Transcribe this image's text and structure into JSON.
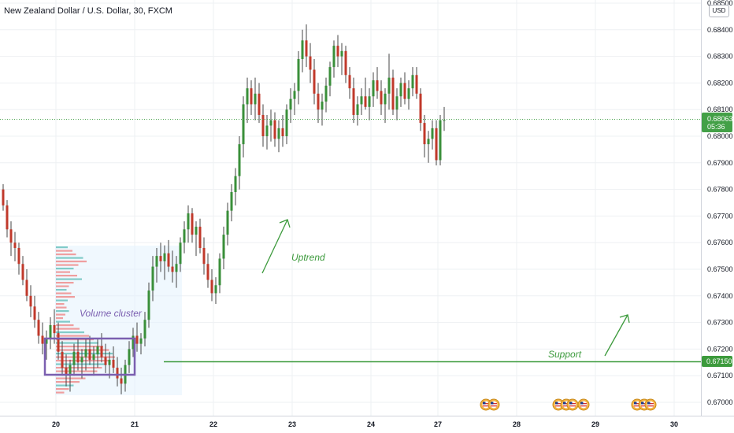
{
  "header": {
    "title": "New Zealand Dollar / U.S. Dollar, 30, FXCM",
    "currency": "USD"
  },
  "chart_data": {
    "type": "candlestick",
    "ylim": [
      0.6696,
      0.6851
    ],
    "y_ticks": [
      "0.68500",
      "0.68400",
      "0.68300",
      "0.68200",
      "0.68100",
      "0.68000",
      "0.67900",
      "0.67800",
      "0.67700",
      "0.67600",
      "0.67500",
      "0.67400",
      "0.67300",
      "0.67200",
      "0.67100",
      "0.67000"
    ],
    "x_ticks": [
      {
        "label": "20",
        "index": 13
      },
      {
        "label": "21",
        "index": 33
      },
      {
        "label": "22",
        "index": 53
      },
      {
        "label": "23",
        "index": 73
      },
      {
        "label": "24",
        "index": 93
      },
      {
        "label": "27",
        "index": 110
      },
      {
        "label": "28",
        "index": 130
      },
      {
        "label": "29",
        "index": 150
      },
      {
        "label": "30",
        "index": 170
      }
    ],
    "ohlc": [
      [
        0.678,
        0.6782,
        0.6772,
        0.6774
      ],
      [
        0.6774,
        0.6776,
        0.6762,
        0.6765
      ],
      [
        0.6765,
        0.6768,
        0.6755,
        0.676
      ],
      [
        0.676,
        0.6764,
        0.6753,
        0.6758
      ],
      [
        0.6758,
        0.676,
        0.6748,
        0.6752
      ],
      [
        0.6752,
        0.6755,
        0.6744,
        0.6746
      ],
      [
        0.6746,
        0.675,
        0.6738,
        0.674
      ],
      [
        0.674,
        0.6744,
        0.6732,
        0.6736
      ],
      [
        0.6736,
        0.674,
        0.6728,
        0.6731
      ],
      [
        0.6731,
        0.6734,
        0.6722,
        0.6725
      ],
      [
        0.6725,
        0.673,
        0.6718,
        0.6722
      ],
      [
        0.6722,
        0.6727,
        0.6716,
        0.6724
      ],
      [
        0.6724,
        0.6732,
        0.672,
        0.6729
      ],
      [
        0.6729,
        0.6735,
        0.6722,
        0.6726
      ],
      [
        0.6726,
        0.673,
        0.6716,
        0.6719
      ],
      [
        0.6719,
        0.6723,
        0.671,
        0.6713
      ],
      [
        0.6713,
        0.6718,
        0.6706,
        0.671
      ],
      [
        0.671,
        0.6716,
        0.6704,
        0.6714
      ],
      [
        0.6714,
        0.6722,
        0.671,
        0.6719
      ],
      [
        0.6719,
        0.6724,
        0.6712,
        0.6715
      ],
      [
        0.6715,
        0.672,
        0.6709,
        0.6717
      ],
      [
        0.6717,
        0.6724,
        0.6712,
        0.672
      ],
      [
        0.672,
        0.6725,
        0.6714,
        0.6716
      ],
      [
        0.6716,
        0.6721,
        0.671,
        0.6718
      ],
      [
        0.6718,
        0.6724,
        0.6713,
        0.6721
      ],
      [
        0.6721,
        0.6726,
        0.6715,
        0.6717
      ],
      [
        0.6717,
        0.6722,
        0.6711,
        0.6714
      ],
      [
        0.6714,
        0.6719,
        0.6709,
        0.6716
      ],
      [
        0.6716,
        0.6721,
        0.6711,
        0.6713
      ],
      [
        0.6713,
        0.6717,
        0.6706,
        0.6709
      ],
      [
        0.6709,
        0.6713,
        0.6703,
        0.6707
      ],
      [
        0.6707,
        0.6716,
        0.6704,
        0.6714
      ],
      [
        0.6714,
        0.6723,
        0.6711,
        0.672
      ],
      [
        0.672,
        0.6728,
        0.6717,
        0.6725
      ],
      [
        0.6725,
        0.673,
        0.6719,
        0.6722
      ],
      [
        0.6722,
        0.6726,
        0.6718,
        0.6724
      ],
      [
        0.6724,
        0.6734,
        0.6721,
        0.6731
      ],
      [
        0.6731,
        0.6745,
        0.6728,
        0.6742
      ],
      [
        0.6742,
        0.6755,
        0.6738,
        0.6751
      ],
      [
        0.6751,
        0.6758,
        0.6745,
        0.6755
      ],
      [
        0.6755,
        0.676,
        0.6749,
        0.6753
      ],
      [
        0.6753,
        0.6759,
        0.6746,
        0.6756
      ],
      [
        0.6756,
        0.6761,
        0.6749,
        0.6751
      ],
      [
        0.6751,
        0.6757,
        0.6745,
        0.6749
      ],
      [
        0.6749,
        0.6755,
        0.6743,
        0.6752
      ],
      [
        0.6752,
        0.6762,
        0.6749,
        0.676
      ],
      [
        0.676,
        0.6768,
        0.6756,
        0.6765
      ],
      [
        0.6765,
        0.6774,
        0.676,
        0.6771
      ],
      [
        0.6771,
        0.6773,
        0.676,
        0.6763
      ],
      [
        0.6763,
        0.6768,
        0.6755,
        0.6766
      ],
      [
        0.6766,
        0.6769,
        0.6756,
        0.6758
      ],
      [
        0.6758,
        0.6762,
        0.6748,
        0.6752
      ],
      [
        0.6752,
        0.6756,
        0.6743,
        0.6746
      ],
      [
        0.6746,
        0.675,
        0.6738,
        0.6741
      ],
      [
        0.6741,
        0.6747,
        0.6737,
        0.6744
      ],
      [
        0.6744,
        0.6756,
        0.6741,
        0.6754
      ],
      [
        0.6754,
        0.6766,
        0.675,
        0.6763
      ],
      [
        0.6763,
        0.6775,
        0.6759,
        0.6772
      ],
      [
        0.6772,
        0.6782,
        0.6768,
        0.6779
      ],
      [
        0.6779,
        0.6788,
        0.6774,
        0.6785
      ],
      [
        0.6785,
        0.68,
        0.678,
        0.6797
      ],
      [
        0.6797,
        0.6815,
        0.6792,
        0.6812
      ],
      [
        0.6812,
        0.6822,
        0.6805,
        0.6818
      ],
      [
        0.6818,
        0.6821,
        0.6808,
        0.6812
      ],
      [
        0.6812,
        0.6822,
        0.6806,
        0.6816
      ],
      [
        0.6816,
        0.682,
        0.6805,
        0.6808
      ],
      [
        0.6808,
        0.6812,
        0.6796,
        0.68
      ],
      [
        0.68,
        0.6808,
        0.6795,
        0.6804
      ],
      [
        0.6804,
        0.681,
        0.6798,
        0.6806
      ],
      [
        0.6806,
        0.6809,
        0.6796,
        0.6799
      ],
      [
        0.6799,
        0.6806,
        0.6794,
        0.6803
      ],
      [
        0.6803,
        0.6808,
        0.6796,
        0.68
      ],
      [
        0.68,
        0.6812,
        0.6797,
        0.681
      ],
      [
        0.681,
        0.6818,
        0.6805,
        0.6814
      ],
      [
        0.6814,
        0.682,
        0.6808,
        0.6817
      ],
      [
        0.6817,
        0.6832,
        0.6812,
        0.6829
      ],
      [
        0.6829,
        0.684,
        0.6824,
        0.6836
      ],
      [
        0.6836,
        0.6842,
        0.6826,
        0.683
      ],
      [
        0.683,
        0.6835,
        0.682,
        0.6825
      ],
      [
        0.6825,
        0.6829,
        0.6812,
        0.6816
      ],
      [
        0.6816,
        0.682,
        0.6805,
        0.681
      ],
      [
        0.681,
        0.6816,
        0.6804,
        0.6813
      ],
      [
        0.6813,
        0.6822,
        0.6809,
        0.6819
      ],
      [
        0.6819,
        0.6828,
        0.6815,
        0.6826
      ],
      [
        0.6826,
        0.6836,
        0.6822,
        0.6834
      ],
      [
        0.6834,
        0.6838,
        0.6826,
        0.683
      ],
      [
        0.683,
        0.6835,
        0.6823,
        0.6832
      ],
      [
        0.6832,
        0.6834,
        0.682,
        0.6823
      ],
      [
        0.6823,
        0.6826,
        0.6814,
        0.6818
      ],
      [
        0.6818,
        0.6822,
        0.6805,
        0.6808
      ],
      [
        0.6808,
        0.6815,
        0.6804,
        0.6812
      ],
      [
        0.6812,
        0.6818,
        0.6808,
        0.6815
      ],
      [
        0.6815,
        0.6822,
        0.681,
        0.6811
      ],
      [
        0.6811,
        0.6818,
        0.6806,
        0.6815
      ],
      [
        0.6815,
        0.6824,
        0.6811,
        0.6821
      ],
      [
        0.6821,
        0.6826,
        0.6814,
        0.6817
      ],
      [
        0.6817,
        0.6821,
        0.6808,
        0.6812
      ],
      [
        0.6812,
        0.6818,
        0.6805,
        0.6816
      ],
      [
        0.6816,
        0.6831,
        0.681,
        0.6822
      ],
      [
        0.6822,
        0.6825,
        0.6808,
        0.681
      ],
      [
        0.681,
        0.6818,
        0.6806,
        0.6815
      ],
      [
        0.6815,
        0.6822,
        0.6811,
        0.682
      ],
      [
        0.682,
        0.6824,
        0.6812,
        0.6814
      ],
      [
        0.6814,
        0.6821,
        0.681,
        0.6818
      ],
      [
        0.6818,
        0.6826,
        0.6815,
        0.6823
      ],
      [
        0.6823,
        0.6826,
        0.6814,
        0.6816
      ],
      [
        0.6816,
        0.6818,
        0.6802,
        0.6805
      ],
      [
        0.6805,
        0.6808,
        0.6792,
        0.6797
      ],
      [
        0.6797,
        0.6802,
        0.679,
        0.6799
      ],
      [
        0.6799,
        0.6806,
        0.6795,
        0.6803
      ],
      [
        0.6803,
        0.6806,
        0.6789,
        0.6791
      ],
      [
        0.6791,
        0.6808,
        0.6789,
        0.6806
      ],
      [
        0.6806,
        0.6811,
        0.6802,
        0.6806
      ]
    ],
    "last_price": "0.68063",
    "countdown": "05:36",
    "support_price": "0.67150",
    "support_value": 0.6715,
    "annotations": {
      "uptrend": "Uptrend",
      "support": "Support",
      "volume_cluster": "Volume cluster"
    }
  },
  "colors": {
    "up": "#26a69a",
    "down": "#ef5350",
    "candle_up": "#3a8f3a",
    "candle_down": "#c0392b",
    "support": "#3c9a3c",
    "cluster": "#7b5fb0",
    "price_label": "#43a047",
    "grid": "#eef0f3"
  }
}
